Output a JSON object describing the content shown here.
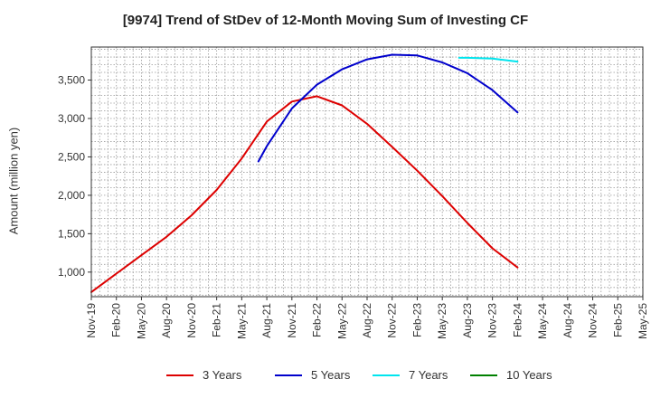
{
  "chart_data": {
    "type": "line",
    "title": "[9974]  Trend of StDev of 12-Month Moving Sum of Investing CF",
    "xlabel": "",
    "ylabel": "Amount (million yen)",
    "x_ticks": [
      "Nov-19",
      "Feb-20",
      "May-20",
      "Aug-20",
      "Nov-20",
      "Feb-21",
      "May-21",
      "Aug-21",
      "Nov-21",
      "Feb-22",
      "May-22",
      "Aug-22",
      "Nov-22",
      "Feb-23",
      "May-23",
      "Aug-23",
      "Nov-23",
      "Feb-24",
      "May-24",
      "Aug-24",
      "Nov-24",
      "Feb-25",
      "May-25"
    ],
    "y_ticks": [
      1000,
      1500,
      2000,
      2500,
      3000,
      3500
    ],
    "y_tick_labels": [
      "1,000",
      "1,500",
      "2,000",
      "2,500",
      "3,000",
      "3,500"
    ],
    "ylim": [
      680,
      3930
    ],
    "grid": true,
    "legend_position": "bottom",
    "series": [
      {
        "name": "3 Years",
        "color": "#dd0000",
        "points": [
          [
            "Nov-19",
            740
          ],
          [
            "Feb-20",
            980
          ],
          [
            "May-20",
            1220
          ],
          [
            "Aug-20",
            1460
          ],
          [
            "Nov-20",
            1740
          ],
          [
            "Feb-21",
            2070
          ],
          [
            "May-21",
            2480
          ],
          [
            "Aug-21",
            2960
          ],
          [
            "Nov-21",
            3220
          ],
          [
            "Feb-22",
            3290
          ],
          [
            "May-22",
            3170
          ],
          [
            "Aug-22",
            2930
          ],
          [
            "Nov-22",
            2630
          ],
          [
            "Feb-23",
            2320
          ],
          [
            "May-23",
            1990
          ],
          [
            "Aug-23",
            1640
          ],
          [
            "Nov-23",
            1310
          ],
          [
            "Feb-24",
            1060
          ]
        ]
      },
      {
        "name": "5 Years",
        "color": "#0000cc",
        "points": [
          [
            "Jul-21",
            2440
          ],
          [
            "Aug-21",
            2640
          ],
          [
            "Nov-21",
            3130
          ],
          [
            "Feb-22",
            3440
          ],
          [
            "May-22",
            3640
          ],
          [
            "Aug-22",
            3770
          ],
          [
            "Nov-22",
            3830
          ],
          [
            "Feb-23",
            3820
          ],
          [
            "May-23",
            3730
          ],
          [
            "Aug-23",
            3590
          ],
          [
            "Nov-23",
            3370
          ],
          [
            "Feb-24",
            3080
          ]
        ]
      },
      {
        "name": "7 Years",
        "color": "#00e5ee",
        "points": [
          [
            "Jul-23",
            3790
          ],
          [
            "Aug-23",
            3790
          ],
          [
            "Nov-23",
            3780
          ],
          [
            "Feb-24",
            3740
          ]
        ]
      },
      {
        "name": "10 Years",
        "color": "#008000",
        "points": []
      }
    ]
  }
}
